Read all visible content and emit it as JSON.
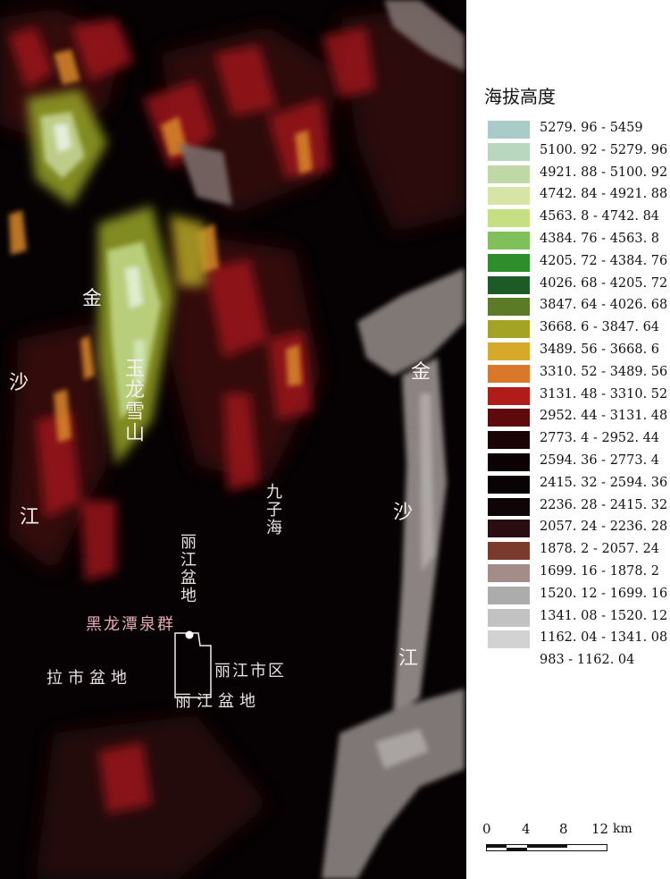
{
  "legend": {
    "title": "海拔高度",
    "items": [
      {
        "label": "5279. 96  -  5459",
        "color": "#a9ccc9"
      },
      {
        "label": "5100. 92  -  5279. 96",
        "color": "#b8d7bf"
      },
      {
        "label": "4921. 88  -  5100. 92",
        "color": "#bfd8a5"
      },
      {
        "label": "4742. 84  -  4921. 88",
        "color": "#d6e5a6"
      },
      {
        "label": "4563. 8  -  4742. 84",
        "color": "#c6df82"
      },
      {
        "label": "4384. 76  -  4563. 8",
        "color": "#7fc05a"
      },
      {
        "label": "4205. 72  -  4384. 76",
        "color": "#2f8e2c"
      },
      {
        "label": "4026. 68  -  4205. 72",
        "color": "#1d5a25"
      },
      {
        "label": "3847. 64  -  4026. 68",
        "color": "#5b7b26"
      },
      {
        "label": "3668. 6  -  3847. 64",
        "color": "#a3a426"
      },
      {
        "label": "3489. 56  -  3668. 6",
        "color": "#d6a92a"
      },
      {
        "label": "3310. 52  -  3489. 56",
        "color": "#d9782a"
      },
      {
        "label": "3131. 48  -  3310. 52",
        "color": "#b01c19"
      },
      {
        "label": "2952. 44  -  3131. 48",
        "color": "#5e0a0d"
      },
      {
        "label": "2773. 4  -  2952. 44",
        "color": "#1a0406"
      },
      {
        "label": "2594. 36  -  2773. 4",
        "color": "#0c0204"
      },
      {
        "label": "2415. 32  -  2594. 36",
        "color": "#0a0306"
      },
      {
        "label": "2236. 28  -  2415. 32",
        "color": "#0f0406"
      },
      {
        "label": "2057. 24  -  2236. 28",
        "color": "#2a0d10"
      },
      {
        "label": "1878. 2  -  2057. 24",
        "color": "#7a3a2c"
      },
      {
        "label": "1699. 16  -  1878. 2",
        "color": "#a38d88"
      },
      {
        "label": "1520. 12  -  1699. 16",
        "color": "#acacac"
      },
      {
        "label": "1341. 08  -  1520. 12",
        "color": "#c2c2c2"
      },
      {
        "label": "1162. 04  -  1341. 08",
        "color": "#d2d2d2"
      },
      {
        "label": "983  -  1162. 04",
        "color": "#ffffff"
      }
    ]
  },
  "scale": {
    "ticks": [
      "0",
      "4",
      "8",
      "12"
    ],
    "unit": "km"
  },
  "map_labels": {
    "yulong": "玉龙雪山",
    "jin_left": "金",
    "sha_left": "沙",
    "jiang_left": "江",
    "jin_right": "金",
    "sha_right": "沙",
    "jiang_right": "江",
    "jiuzihai": "九子海",
    "lijiang_basin_v": "丽江盆地",
    "heilongtan": "黑龙潭泉群",
    "lashi": "拉市盆地",
    "lijiang_city": "丽江市区",
    "lijiang_basin_h": "丽江盆地"
  },
  "colors": {
    "map_bg": "#060203",
    "label": "#e8e1e0",
    "label_pink": "#e6a8b4"
  }
}
